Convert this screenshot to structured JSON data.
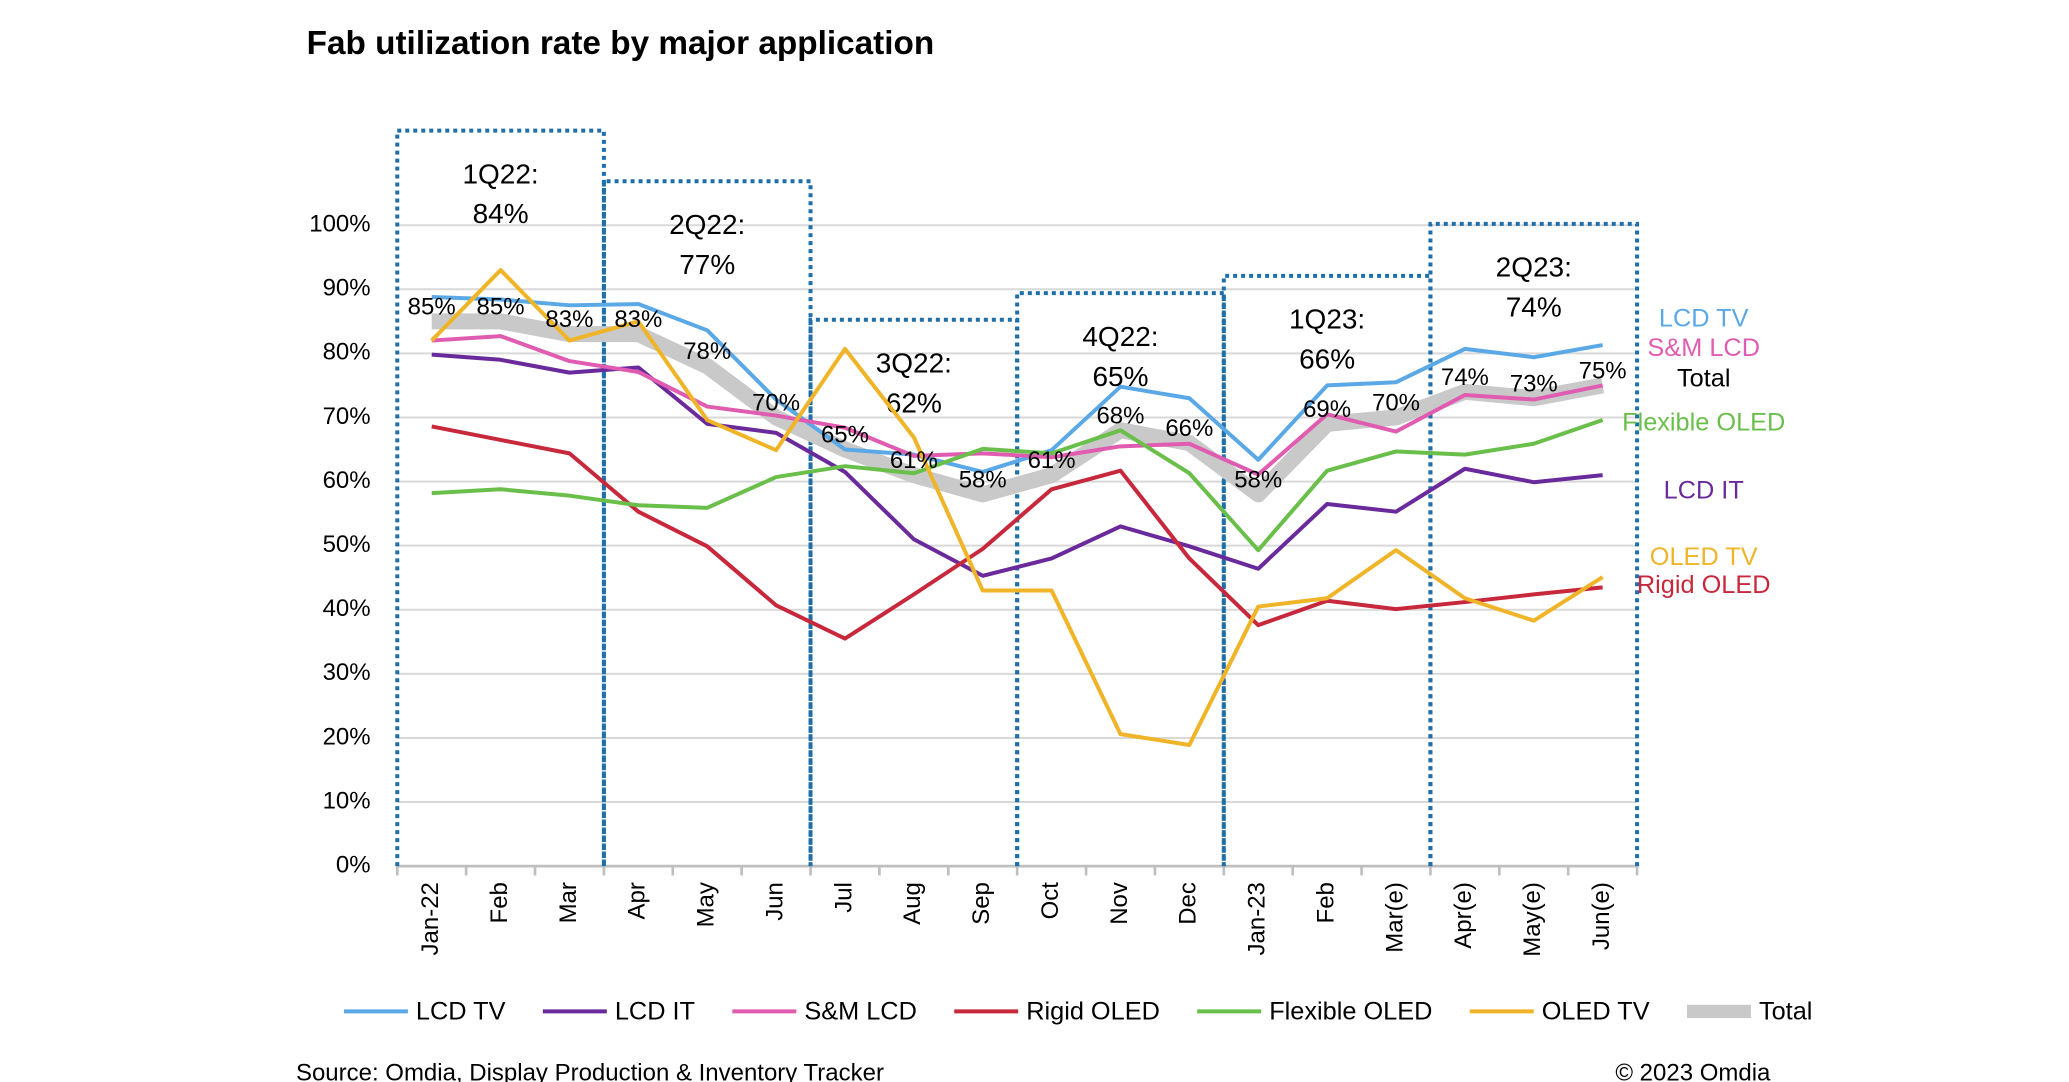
{
  "chart_data": {
    "type": "line",
    "title": "Fab utilization rate by major application",
    "source": "Source: Omdia, Display Production & Inventory Tracker",
    "copyright": "© 2023 Omdia",
    "categories": [
      "Jan-22",
      "Feb",
      "Mar",
      "Apr",
      "May",
      "Jun",
      "Jul",
      "Aug",
      "Sep",
      "Oct",
      "Nov",
      "Dec",
      "Jan-23",
      "Feb",
      "Mar(e)",
      "Apr(e)",
      "May(e)",
      "Jun(e)"
    ],
    "ylim": [
      0,
      100
    ],
    "yticks": [
      {
        "value": 0,
        "label": "0%"
      },
      {
        "value": 10,
        "label": "10%"
      },
      {
        "value": 20,
        "label": "20%"
      },
      {
        "value": 30,
        "label": "30%"
      },
      {
        "value": 40,
        "label": "40%"
      },
      {
        "value": 50,
        "label": "50%"
      },
      {
        "value": 60,
        "label": "60%"
      },
      {
        "value": 70,
        "label": "70%"
      },
      {
        "value": 80,
        "label": "80%"
      },
      {
        "value": 90,
        "label": "90%"
      },
      {
        "value": 100,
        "label": "100%"
      }
    ],
    "grid": true,
    "series": [
      {
        "name": "Total",
        "color": "#c9c9c9",
        "values": [
          85,
          85,
          83,
          83,
          78,
          70,
          65,
          61,
          58,
          61,
          68,
          66,
          58,
          69,
          70,
          74,
          73,
          75
        ],
        "value_labels": [
          "85%",
          "85%",
          "83%",
          "83%",
          "78%",
          "70%",
          "65%",
          "61%",
          "58%",
          "61%",
          "68%",
          "66%",
          "58%",
          "69%",
          "70%",
          "74%",
          "73%",
          "75%"
        ]
      },
      {
        "name": "LCD TV",
        "color": "#5aa9e6",
        "values": [
          88.8,
          88.4,
          87.5,
          87.7,
          83.6,
          72.8,
          65,
          64.2,
          61.5,
          64.9,
          74.8,
          73,
          63.4,
          75,
          75.5,
          80.7,
          79.4,
          81.3
        ]
      },
      {
        "name": "LCD IT",
        "color": "#6a2a9b",
        "values": [
          79.8,
          79,
          77,
          77.8,
          69,
          67.6,
          61.5,
          51,
          45.3,
          48,
          53,
          49.9,
          46.4,
          56.5,
          55.3,
          62,
          59.9,
          61
        ]
      },
      {
        "name": "S&M LCD",
        "color": "#e05cb0",
        "values": [
          82,
          82.7,
          78.8,
          77.1,
          71.7,
          70.3,
          68.4,
          64,
          64.4,
          63.8,
          65.5,
          65.9,
          61.1,
          70.5,
          67.8,
          73.5,
          72.8,
          75
        ]
      },
      {
        "name": "Rigid OLED",
        "color": "#c8283c",
        "values": [
          68.6,
          66.5,
          64.4,
          55.3,
          49.9,
          40.7,
          35.5,
          42.4,
          49.5,
          58.8,
          61.7,
          48,
          37.6,
          41.4,
          40.1,
          41.2,
          42.4,
          43.5
        ]
      },
      {
        "name": "Flexible OLED",
        "color": "#6abf4b",
        "values": [
          58.2,
          58.8,
          57.8,
          56.3,
          55.9,
          60.7,
          62.4,
          61.3,
          65.1,
          64.4,
          68,
          61.3,
          49.3,
          61.7,
          64.7,
          64.2,
          65.9,
          69.6
        ]
      },
      {
        "name": "OLED TV",
        "color": "#f0b429",
        "values": [
          82,
          93,
          82,
          85,
          69.6,
          64.9,
          80.7,
          66.9,
          43,
          43,
          20.6,
          18.9,
          40.5,
          41.8,
          49.3,
          41.8,
          38.3,
          45.1
        ]
      }
    ],
    "quarters": [
      {
        "label": "1Q22:",
        "value": 84,
        "value_label": "84%"
      },
      {
        "label": "2Q22:",
        "value": 77,
        "value_label": "77%"
      },
      {
        "label": "3Q22:",
        "value": 62,
        "value_label": "62%"
      },
      {
        "label": "4Q22:",
        "value": 65,
        "value_label": "65%"
      },
      {
        "label": "1Q23:",
        "value": 66,
        "value_label": "66%"
      },
      {
        "label": "2Q23:",
        "value": 74,
        "value_label": "74%"
      }
    ]
  }
}
